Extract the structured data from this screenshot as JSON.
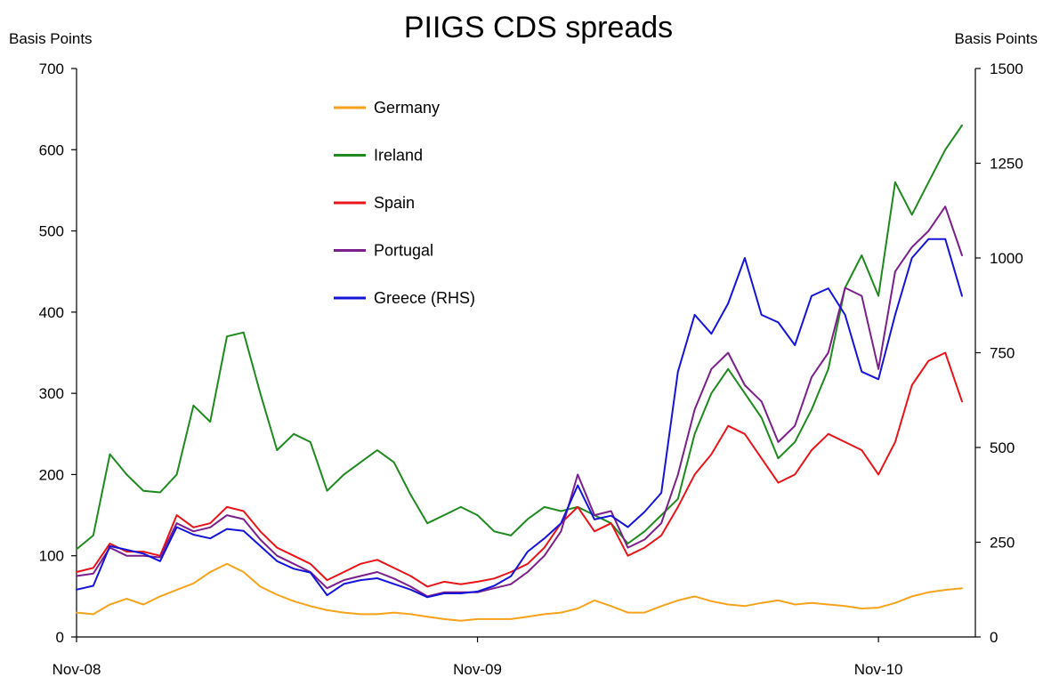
{
  "chart_data": {
    "type": "line",
    "title": "PIIGS CDS spreads",
    "ylabel_left": "Basis Points",
    "ylabel_right": "Basis Points",
    "x_tick_labels": [
      "Nov-08",
      "Nov-09",
      "Nov-10"
    ],
    "x_tick_months": [
      0,
      12,
      24
    ],
    "y_left_ticks": [
      0,
      100,
      200,
      300,
      400,
      500,
      600,
      700
    ],
    "y_right_ticks": [
      0,
      250,
      500,
      750,
      1000,
      1250,
      1500
    ],
    "ylim_left": [
      0,
      700
    ],
    "ylim_right": [
      0,
      1500
    ],
    "xlim_months": [
      0,
      26.9
    ],
    "legend_position": "top-left",
    "grid": false,
    "series": [
      {
        "name": "Germany",
        "color": "#F7A21B",
        "axis": "left",
        "x": [
          0.0,
          0.5,
          1.0,
          1.5,
          2.0,
          2.5,
          3.0,
          3.5,
          4.0,
          4.5,
          5.0,
          5.5,
          6.0,
          6.5,
          7.0,
          7.5,
          8.0,
          8.5,
          9.0,
          9.5,
          10.0,
          10.5,
          11.0,
          11.5,
          12.0,
          12.5,
          13.0,
          13.5,
          14.0,
          14.5,
          15.0,
          15.5,
          16.0,
          16.5,
          17.0,
          17.5,
          18.0,
          18.5,
          19.0,
          19.5,
          20.0,
          20.5,
          21.0,
          21.5,
          22.0,
          22.5,
          23.0,
          23.5,
          24.0,
          24.5,
          25.0,
          25.5,
          26.0,
          26.5
        ],
        "y": [
          30,
          28,
          40,
          47,
          40,
          50,
          58,
          66,
          80,
          90,
          80,
          62,
          52,
          44,
          38,
          33,
          30,
          28,
          28,
          30,
          28,
          25,
          22,
          20,
          22,
          22,
          22,
          25,
          28,
          30,
          35,
          45,
          38,
          30,
          30,
          38,
          45,
          50,
          44,
          40,
          38,
          42,
          45,
          40,
          42,
          40,
          38,
          35,
          36,
          42,
          50,
          55,
          58,
          60
        ]
      },
      {
        "name": "Ireland",
        "color": "#1E8A1E",
        "axis": "left",
        "x": [
          0.0,
          0.5,
          1.0,
          1.5,
          2.0,
          2.5,
          3.0,
          3.5,
          4.0,
          4.5,
          5.0,
          5.5,
          6.0,
          6.5,
          7.0,
          7.5,
          8.0,
          8.5,
          9.0,
          9.5,
          10.0,
          10.5,
          11.0,
          11.5,
          12.0,
          12.5,
          13.0,
          13.5,
          14.0,
          14.5,
          15.0,
          15.5,
          16.0,
          16.5,
          17.0,
          17.5,
          18.0,
          18.5,
          19.0,
          19.5,
          20.0,
          20.5,
          21.0,
          21.5,
          22.0,
          22.5,
          23.0,
          23.5,
          24.0,
          24.5,
          25.0,
          25.5,
          26.0,
          26.5
        ],
        "y": [
          108,
          125,
          225,
          200,
          180,
          178,
          200,
          285,
          265,
          370,
          375,
          300,
          230,
          250,
          240,
          180,
          200,
          215,
          230,
          215,
          175,
          140,
          150,
          160,
          150,
          130,
          125,
          145,
          160,
          155,
          160,
          150,
          140,
          115,
          130,
          150,
          170,
          250,
          300,
          330,
          300,
          270,
          220,
          240,
          280,
          330,
          430,
          470,
          420,
          560,
          520,
          560,
          600,
          630
        ]
      },
      {
        "name": "Spain",
        "color": "#E8141A",
        "axis": "left",
        "x": [
          0.0,
          0.5,
          1.0,
          1.5,
          2.0,
          2.5,
          3.0,
          3.5,
          4.0,
          4.5,
          5.0,
          5.5,
          6.0,
          6.5,
          7.0,
          7.5,
          8.0,
          8.5,
          9.0,
          9.5,
          10.0,
          10.5,
          11.0,
          11.5,
          12.0,
          12.5,
          13.0,
          13.5,
          14.0,
          14.5,
          15.0,
          15.5,
          16.0,
          16.5,
          17.0,
          17.5,
          18.0,
          18.5,
          19.0,
          19.5,
          20.0,
          20.5,
          21.0,
          21.5,
          22.0,
          22.5,
          23.0,
          23.5,
          24.0,
          24.5,
          25.0,
          25.5,
          26.0,
          26.5
        ],
        "y": [
          80,
          85,
          115,
          105,
          105,
          100,
          150,
          135,
          140,
          160,
          155,
          130,
          110,
          100,
          90,
          70,
          80,
          90,
          95,
          85,
          75,
          62,
          68,
          65,
          68,
          72,
          80,
          90,
          110,
          140,
          160,
          130,
          140,
          100,
          110,
          125,
          160,
          200,
          225,
          260,
          250,
          220,
          190,
          200,
          230,
          250,
          240,
          230,
          200,
          240,
          310,
          340,
          350,
          290
        ]
      },
      {
        "name": "Portugal",
        "color": "#7B1F8C",
        "axis": "left",
        "x": [
          0.0,
          0.5,
          1.0,
          1.5,
          2.0,
          2.5,
          3.0,
          3.5,
          4.0,
          4.5,
          5.0,
          5.5,
          6.0,
          6.5,
          7.0,
          7.5,
          8.0,
          8.5,
          9.0,
          9.5,
          10.0,
          10.5,
          11.0,
          11.5,
          12.0,
          12.5,
          13.0,
          13.5,
          14.0,
          14.5,
          15.0,
          15.5,
          16.0,
          16.5,
          17.0,
          17.5,
          18.0,
          18.5,
          19.0,
          19.5,
          20.0,
          20.5,
          21.0,
          21.5,
          22.0,
          22.5,
          23.0,
          23.5,
          24.0,
          24.5,
          25.0,
          25.5,
          26.0,
          26.5
        ],
        "y": [
          75,
          78,
          110,
          100,
          100,
          98,
          140,
          130,
          135,
          150,
          145,
          120,
          100,
          90,
          80,
          60,
          70,
          75,
          80,
          72,
          62,
          50,
          55,
          55,
          55,
          60,
          65,
          80,
          100,
          130,
          200,
          150,
          155,
          110,
          120,
          140,
          200,
          280,
          330,
          350,
          310,
          290,
          240,
          260,
          320,
          350,
          430,
          420,
          330,
          450,
          480,
          500,
          530,
          470
        ]
      },
      {
        "name": "Greece (RHS)",
        "color": "#1414D8",
        "axis": "right",
        "x": [
          0.0,
          0.5,
          1.0,
          1.5,
          2.0,
          2.5,
          3.0,
          3.5,
          4.0,
          4.5,
          5.0,
          5.5,
          6.0,
          6.5,
          7.0,
          7.5,
          8.0,
          8.5,
          9.0,
          9.5,
          10.0,
          10.5,
          11.0,
          11.5,
          12.0,
          12.5,
          13.0,
          13.5,
          14.0,
          14.5,
          15.0,
          15.5,
          16.0,
          16.5,
          17.0,
          17.5,
          18.0,
          18.5,
          19.0,
          19.5,
          20.0,
          20.5,
          21.0,
          21.5,
          22.0,
          22.5,
          23.0,
          23.5,
          24.0,
          24.5,
          25.0,
          25.5,
          26.0,
          26.5
        ],
        "y": [
          125,
          135,
          240,
          230,
          220,
          200,
          290,
          270,
          260,
          285,
          280,
          240,
          200,
          180,
          170,
          110,
          140,
          150,
          155,
          140,
          125,
          105,
          115,
          115,
          120,
          135,
          160,
          225,
          260,
          300,
          400,
          310,
          320,
          290,
          330,
          380,
          700,
          850,
          800,
          880,
          1000,
          850,
          830,
          770,
          900,
          920,
          850,
          700,
          680,
          850,
          1000,
          1050,
          1050,
          900
        ]
      }
    ]
  }
}
